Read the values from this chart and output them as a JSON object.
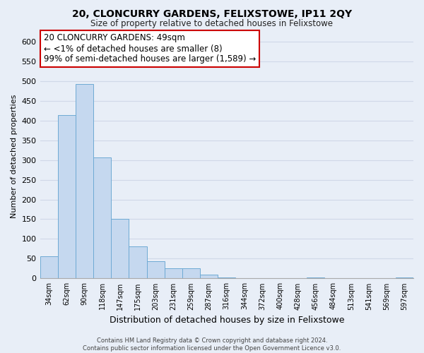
{
  "title": "20, CLONCURRY GARDENS, FELIXSTOWE, IP11 2QY",
  "subtitle": "Size of property relative to detached houses in Felixstowe",
  "xlabel": "Distribution of detached houses by size in Felixstowe",
  "ylabel": "Number of detached properties",
  "bar_color": "#c5d8ef",
  "bar_edge_color": "#6eaad4",
  "categories": [
    "34sqm",
    "62sqm",
    "90sqm",
    "118sqm",
    "147sqm",
    "175sqm",
    "203sqm",
    "231sqm",
    "259sqm",
    "287sqm",
    "316sqm",
    "344sqm",
    "372sqm",
    "400sqm",
    "428sqm",
    "456sqm",
    "484sqm",
    "513sqm",
    "541sqm",
    "569sqm",
    "597sqm"
  ],
  "values": [
    57,
    413,
    492,
    307,
    150,
    82,
    44,
    25,
    25,
    10,
    2,
    0,
    0,
    0,
    0,
    2,
    0,
    0,
    0,
    0,
    2
  ],
  "ylim": [
    0,
    620
  ],
  "yticks": [
    0,
    50,
    100,
    150,
    200,
    250,
    300,
    350,
    400,
    450,
    500,
    550,
    600
  ],
  "annotation_line1": "20 CLONCURRY GARDENS: 49sqm",
  "annotation_line2": "← <1% of detached houses are smaller (8)",
  "annotation_line3": "99% of semi-detached houses are larger (1,589) →",
  "annotation_box_color": "white",
  "annotation_box_edge_color": "#cc0000",
  "background_color": "#e8eef7",
  "grid_color": "#d0d8e8",
  "footer_line1": "Contains HM Land Registry data © Crown copyright and database right 2024.",
  "footer_line2": "Contains public sector information licensed under the Open Government Licence v3.0."
}
